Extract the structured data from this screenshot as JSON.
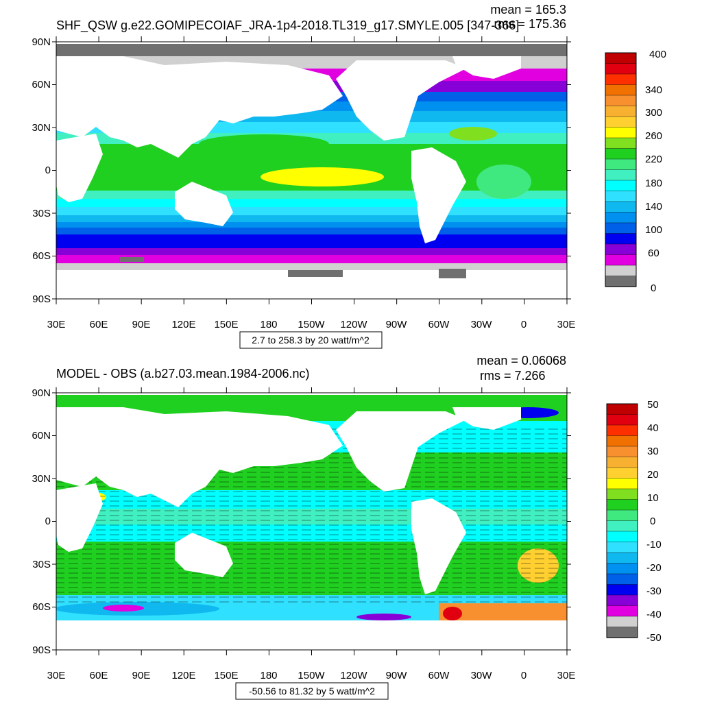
{
  "panels": [
    {
      "title": "SHF_QSW g.e22.GOMIPECOIAF_JRA-1p4-2018.TL319_g17.SMYLE.005 [347-366]",
      "mean_text": "mean = 165.3",
      "rms_text": "rms = 175.36",
      "range_note": "2.7 to 258.3 by 20 watt/m^2",
      "colorbar_labels": [
        "400",
        "340",
        "300",
        "260",
        "220",
        "180",
        "140",
        "100",
        "60",
        "0"
      ],
      "colorbar_colors": [
        "#c00000",
        "#e00010",
        "#ff3000",
        "#f07000",
        "#f89030",
        "#f8b030",
        "#ffd030",
        "#ffff00",
        "#80e020",
        "#20d020",
        "#40e880",
        "#40f0c0",
        "#00ffff",
        "#30e0ff",
        "#10b8f0",
        "#0090f0",
        "#0060e8",
        "#0000f0",
        "#8800d8",
        "#e000e0",
        "#d0d0d0",
        "#707070"
      ]
    },
    {
      "title": "MODEL - OBS (a.b27.03.mean.1984-2006.nc)",
      "mean_text": "mean = 0.06068",
      "rms_text": "rms = 7.266",
      "range_note": "-50.56 to 81.32 by 5 watt/m^2",
      "colorbar_labels": [
        "50",
        "40",
        "30",
        "20",
        "10",
        "0",
        "-10",
        "-20",
        "-30",
        "-40",
        "-50"
      ],
      "colorbar_colors": [
        "#c00000",
        "#e00010",
        "#ff3000",
        "#f07000",
        "#f89030",
        "#f8b030",
        "#ffd030",
        "#ffff00",
        "#80e020",
        "#20d020",
        "#40e880",
        "#40f0c0",
        "#00ffff",
        "#30e0ff",
        "#10b8f0",
        "#0090f0",
        "#0060e8",
        "#0000f0",
        "#8800d8",
        "#e000e0",
        "#d0d0d0",
        "#707070"
      ]
    }
  ],
  "axes": {
    "lat_labels": [
      "90N",
      "60N",
      "30N",
      "0",
      "30S",
      "60S",
      "90S"
    ],
    "lon_labels": [
      "30E",
      "60E",
      "90E",
      "120E",
      "150E",
      "180",
      "150W",
      "120W",
      "90W",
      "60W",
      "30W",
      "0",
      "30E"
    ]
  },
  "colors": {
    "land": "#ffffff",
    "sea_ice_dark": "#707070",
    "sea_ice_light": "#d0d0d0"
  }
}
